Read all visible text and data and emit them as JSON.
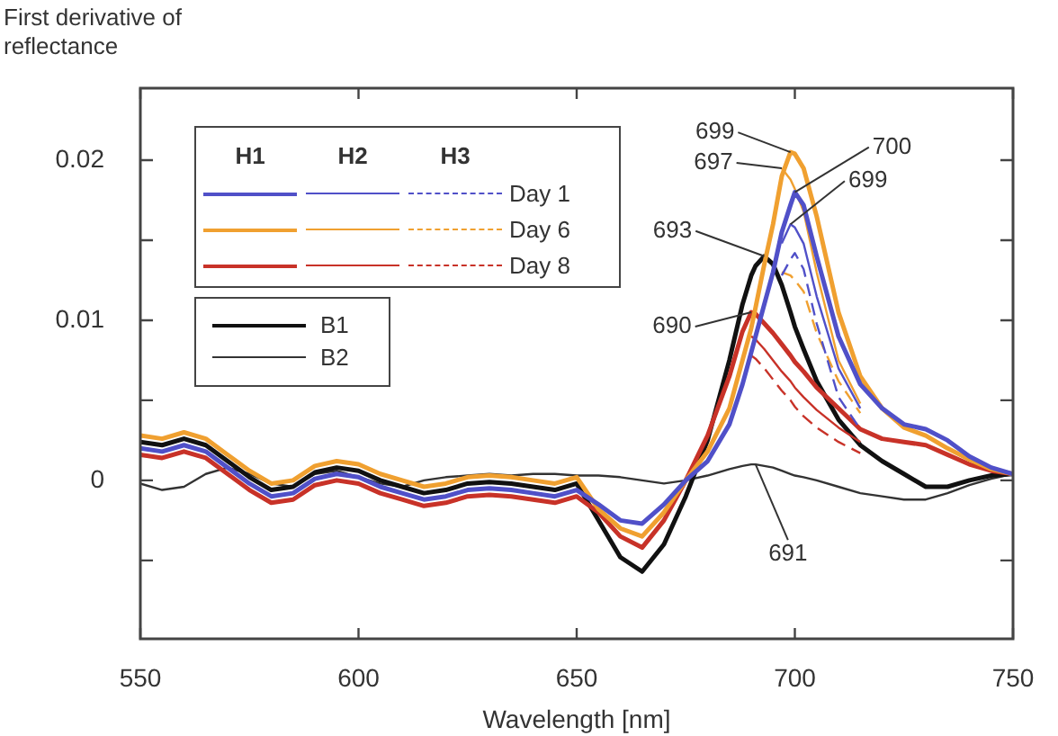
{
  "chart_data": {
    "type": "line",
    "ylabel": "First derivative of reflectance",
    "xlabel": "Wavelength [nm]",
    "x": [
      550,
      555,
      560,
      565,
      570,
      575,
      580,
      585,
      590,
      595,
      600,
      605,
      610,
      615,
      620,
      625,
      630,
      635,
      640,
      645,
      650,
      655,
      660,
      665,
      670,
      675,
      680,
      685,
      688,
      690,
      691,
      693,
      695,
      697,
      699,
      700,
      702,
      705,
      710,
      715,
      720,
      725,
      730,
      735,
      740,
      745,
      750
    ],
    "xlim": [
      550,
      750
    ],
    "xticks": [
      550,
      600,
      650,
      700,
      750
    ],
    "ylim": [
      -0.0099,
      0.0245
    ],
    "yticks": [
      {
        "value": -0.005,
        "label": null
      },
      0,
      {
        "value": 0.005,
        "label": null
      },
      0.01,
      {
        "value": 0.015,
        "label": null
      },
      0.02
    ],
    "legend": "top left",
    "grid": false,
    "marker": "none",
    "series": [
      {
        "color": "#5050c8",
        "line_style": "solid",
        "values": [
          0.002,
          0.0018,
          0.0022,
          0.0018,
          0.0008,
          -0.0002,
          -0.001,
          -0.0008,
          0.0001,
          0.0004,
          0.0002,
          -0.0004,
          -0.0008,
          -0.0012,
          -0.001,
          -0.0006,
          -0.0005,
          -0.0006,
          -0.0008,
          -0.001,
          -0.0006,
          -0.0015,
          -0.0025,
          -0.0027,
          -0.0015,
          0.0,
          0.0012,
          0.0035,
          0.006,
          0.008,
          0.009,
          0.011,
          0.013,
          0.0155,
          0.0172,
          0.018,
          0.0172,
          0.014,
          0.009,
          0.006,
          0.0045,
          0.0035,
          0.0032,
          0.0025,
          0.0015,
          0.0008,
          0.0004
        ]
      },
      {
        "color": "#5050c8",
        "line_style": "solid",
        "x": [
          697,
          699,
          700,
          702,
          705,
          710,
          715
        ],
        "values": [
          0.0148,
          0.016,
          0.0158,
          0.0148,
          0.0115,
          0.007,
          0.0045
        ]
      },
      {
        "color": "#5050c8",
        "line_style": "dashed",
        "x": [
          697,
          699,
          700,
          702,
          705,
          710,
          715
        ],
        "values": [
          0.0128,
          0.0138,
          0.0142,
          0.0132,
          0.0098,
          0.0052,
          0.0032
        ]
      },
      {
        "color": "#f0a030",
        "line_style": "solid",
        "values": [
          0.0028,
          0.0026,
          0.003,
          0.0026,
          0.0016,
          0.0006,
          -0.0002,
          0.0,
          0.0009,
          0.0012,
          0.001,
          0.0004,
          0.0,
          -0.0004,
          -0.0002,
          0.0002,
          0.0003,
          0.0002,
          0.0,
          -0.0002,
          0.0002,
          -0.0018,
          -0.003,
          -0.0035,
          -0.002,
          0.0,
          0.0018,
          0.0045,
          0.0075,
          0.0095,
          0.0108,
          0.0135,
          0.016,
          0.019,
          0.0205,
          0.0204,
          0.0195,
          0.0165,
          0.0105,
          0.0065,
          0.0045,
          0.0033,
          0.0028,
          0.002,
          0.0013,
          0.0007,
          0.0004
        ]
      },
      {
        "color": "#f0a030",
        "line_style": "solid",
        "x": [
          697,
          699,
          700,
          702,
          705,
          710,
          715
        ],
        "values": [
          0.0195,
          0.0188,
          0.0182,
          0.0168,
          0.013,
          0.0075,
          0.0048
        ]
      },
      {
        "color": "#f0a030",
        "line_style": "dashed",
        "x": [
          697,
          699,
          700,
          702,
          705,
          710,
          715
        ],
        "values": [
          0.013,
          0.0128,
          0.0125,
          0.0118,
          0.0092,
          0.0062,
          0.0042
        ]
      },
      {
        "color": "#c83228",
        "line_style": "solid",
        "values": [
          0.0016,
          0.0014,
          0.0018,
          0.0014,
          0.0004,
          -0.0006,
          -0.0014,
          -0.0012,
          -0.0003,
          0.0,
          -0.0002,
          -0.0008,
          -0.0012,
          -0.0016,
          -0.0014,
          -0.001,
          -0.0009,
          -0.001,
          -0.0012,
          -0.0014,
          -0.001,
          -0.002,
          -0.0035,
          -0.0042,
          -0.0025,
          0.0,
          0.0028,
          0.0065,
          0.0093,
          0.0105,
          0.0104,
          0.0098,
          0.0092,
          0.0085,
          0.0078,
          0.0074,
          0.0068,
          0.0058,
          0.0045,
          0.0032,
          0.0026,
          0.0024,
          0.0022,
          0.0016,
          0.001,
          0.0006,
          0.0004
        ]
      },
      {
        "color": "#c83228",
        "line_style": "solid",
        "x": [
          690,
          691,
          693,
          695,
          697,
          699,
          700,
          702,
          705,
          710,
          715
        ],
        "values": [
          0.009,
          0.0088,
          0.0082,
          0.0075,
          0.0068,
          0.0062,
          0.0058,
          0.0052,
          0.0044,
          0.0033,
          0.0024
        ]
      },
      {
        "color": "#c83228",
        "line_style": "dashed",
        "x": [
          690,
          691,
          693,
          695,
          697,
          699,
          700,
          702,
          705,
          710,
          715
        ],
        "values": [
          0.0078,
          0.0076,
          0.007,
          0.0063,
          0.0056,
          0.005,
          0.0046,
          0.004,
          0.0033,
          0.0024,
          0.0017
        ]
      },
      {
        "name": "B1",
        "color": "#111111",
        "line_style": "solid",
        "values": [
          0.0024,
          0.0022,
          0.0026,
          0.0022,
          0.0012,
          0.0002,
          -0.0006,
          -0.0004,
          0.0005,
          0.0008,
          0.0006,
          0.0,
          -0.0004,
          -0.0008,
          -0.0006,
          -0.0002,
          -0.0001,
          -0.0002,
          -0.0004,
          -0.0006,
          -0.0002,
          -0.0025,
          -0.0048,
          -0.0057,
          -0.004,
          -0.001,
          0.0025,
          0.0075,
          0.011,
          0.0128,
          0.0134,
          0.014,
          0.0135,
          0.0122,
          0.0105,
          0.0096,
          0.0082,
          0.0062,
          0.0038,
          0.0022,
          0.0012,
          0.0004,
          -0.0004,
          -0.0004,
          0.0,
          0.0003,
          0.0004
        ]
      },
      {
        "name": "B2",
        "color": "#333333",
        "line_style": "solid",
        "values": [
          -0.0002,
          -0.0006,
          -0.0004,
          0.0004,
          0.0008,
          0.0004,
          -0.0002,
          -0.0004,
          0.0004,
          0.0006,
          0.0002,
          -0.0002,
          -0.0004,
          0.0,
          0.0002,
          0.0003,
          0.0004,
          0.0003,
          0.0004,
          0.0004,
          0.0003,
          0.0003,
          0.0002,
          0.0,
          -0.0002,
          0.0,
          0.0003,
          0.0007,
          0.0009,
          0.001,
          0.001,
          0.0009,
          0.0008,
          0.0006,
          0.0004,
          0.0003,
          0.0002,
          0.0,
          -0.0004,
          -0.0008,
          -0.001,
          -0.0012,
          -0.0012,
          -0.0008,
          -0.0003,
          0.0001,
          0.0004
        ]
      }
    ],
    "annotations": [
      "H1",
      "H2",
      "H3",
      "Day 1",
      "Day 6",
      "Day 8",
      {
        "text": "699",
        "x": 699,
        "y": 0.0205
      },
      {
        "text": "697",
        "x": 697,
        "y": 0.0195
      },
      {
        "text": "700",
        "x": 700,
        "y": 0.018
      },
      {
        "text": "699",
        "x": 699,
        "y": 0.016
      },
      {
        "text": "693",
        "x": 693,
        "y": 0.014
      },
      {
        "text": "690",
        "x": 690,
        "y": 0.0105
      },
      {
        "text": "691",
        "x": 691,
        "y": 0.001
      }
    ]
  }
}
